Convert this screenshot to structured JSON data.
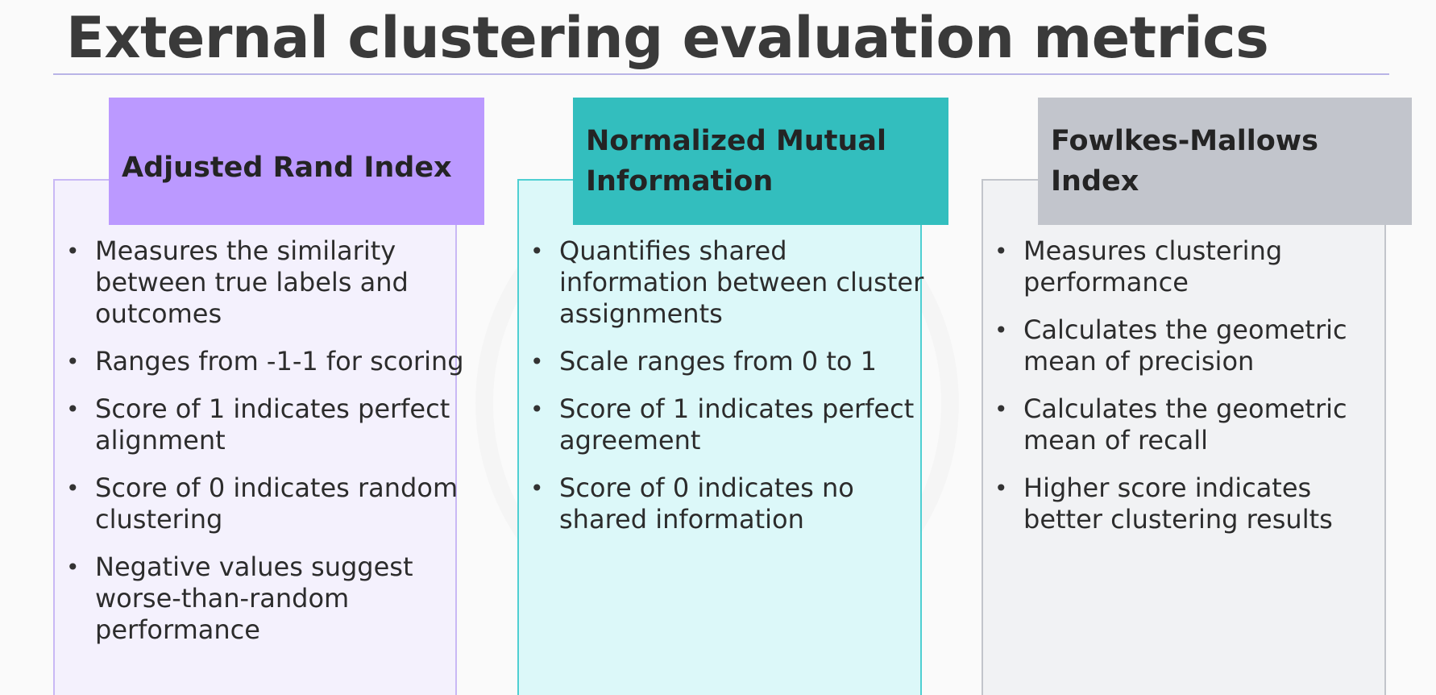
{
  "slide": {
    "title": "External clustering evaluation metrics"
  },
  "cards": {
    "ari": {
      "heading": "Adjusted Rand Index",
      "bullets": [
        "Measures the similarity between true labels and outcomes",
        "Ranges from -1-1 for scoring",
        "Score of 1 indicates perfect alignment",
        "Score of 0 indicates random clustering",
        "Negative values suggest worse-than-random performance"
      ]
    },
    "nmi": {
      "heading": "Normalized Mutual Information",
      "bullets": [
        "Quantifies shared information between cluster assignments",
        "Scale ranges from 0 to 1",
        "Score of 1 indicates perfect agreement",
        "Score of 0 indicates no shared information"
      ]
    },
    "fmi": {
      "heading": "Fowlkes-Mallows Index",
      "bullets": [
        "Measures clustering performance",
        "Calculates the geometric mean of precision",
        "Calculates the geometric mean of recall",
        "Higher score indicates better clustering results"
      ]
    }
  },
  "colors": {
    "ari_header": "#bb99ff",
    "ari_panel": "#f4f1fd",
    "nmi_header": "#33bebe",
    "nmi_panel": "#dcf8f9",
    "fmi_header": "#c2c5cc",
    "fmi_panel": "#f1f2f4",
    "title_rule": "#b9b4e6"
  }
}
